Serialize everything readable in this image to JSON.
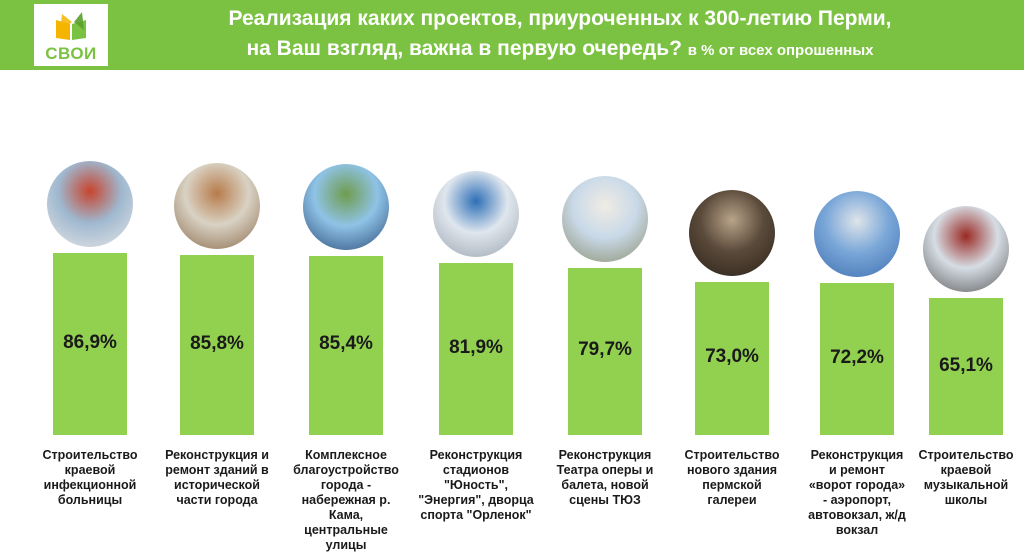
{
  "header": {
    "logo_text": "СВОИ",
    "title_line1": "Реализация каких проектов, приуроченных к 300-летию Перми,",
    "title_line2": "на Ваш взгляд, важна в первую очередь?",
    "title_note": "в % от всех опрошенных"
  },
  "colors": {
    "header": "#7cc242",
    "bar": "#92d050",
    "text": "#1a1a1a"
  },
  "chart_data": {
    "type": "bar",
    "title": "Реализация каких проектов, приуроченных к 300-летию Перми, на Ваш взгляд, важна в первую очередь?",
    "ylabel": "в % от всех опрошенных",
    "ylim": [
      0,
      100
    ],
    "grid": false,
    "categories": [
      "Строительство краевой инфекционной больницы",
      "Реконструкция и ремонт зданий в исторической части города",
      "Комплексное благоустройство города - набережная р. Кама, центральные улицы",
      "Реконструкция стадионов \"Юность\", \"Энергия\", дворца спорта \"Орленок\"",
      "Реконструкция Театра оперы и балета, новой сцены ТЮЗ",
      "Строительство нового здания пермской галереи",
      "Реконструкция и ремонт «ворот города» - аэропорт, автовокзал, ж/д вокзал",
      "Строительство краевой музыкальной школы"
    ],
    "category_lines": [
      "Строительство\nкраевой\nинфекционной\nбольницы",
      "Реконструкция и\nремонт зданий в\nисторической\nчасти города",
      "Комплексное\nблагоустройство\nгорода -\nнабережная р. Кама,\nцентральные улицы",
      "Реконструкция\nстадионов\n\"Юность\",\n\"Энергия\", дворца\nспорта \"Орленок\"",
      "Реконструкция\nТеатра оперы и\nбалета, новой\nсцены ТЮЗ",
      "Строительство\nнового здания\nпермской\nгалереи",
      "Реконструкция\nи ремонт\n«ворот города»\n- аэропорт,\nавтовокзал, ж/д\nвокзал",
      "Строительство\nкраевой\nмузыкальной\nшколы"
    ],
    "values": [
      86.9,
      85.8,
      85.4,
      81.9,
      79.7,
      73.0,
      72.2,
      65.1
    ],
    "labels": [
      "86,9%",
      "85,8%",
      "85,4%",
      "81,9%",
      "79,7%",
      "73,0%",
      "72,2%",
      "65,1%"
    ],
    "icons": [
      "doctor-photo-icon",
      "historic-building-photo-icon",
      "embankment-photo-icon",
      "stadium-photo-icon",
      "theatre-photo-icon",
      "gallery-sculpture-photo-icon",
      "airport-photo-icon",
      "music-school-photo-icon"
    ]
  }
}
